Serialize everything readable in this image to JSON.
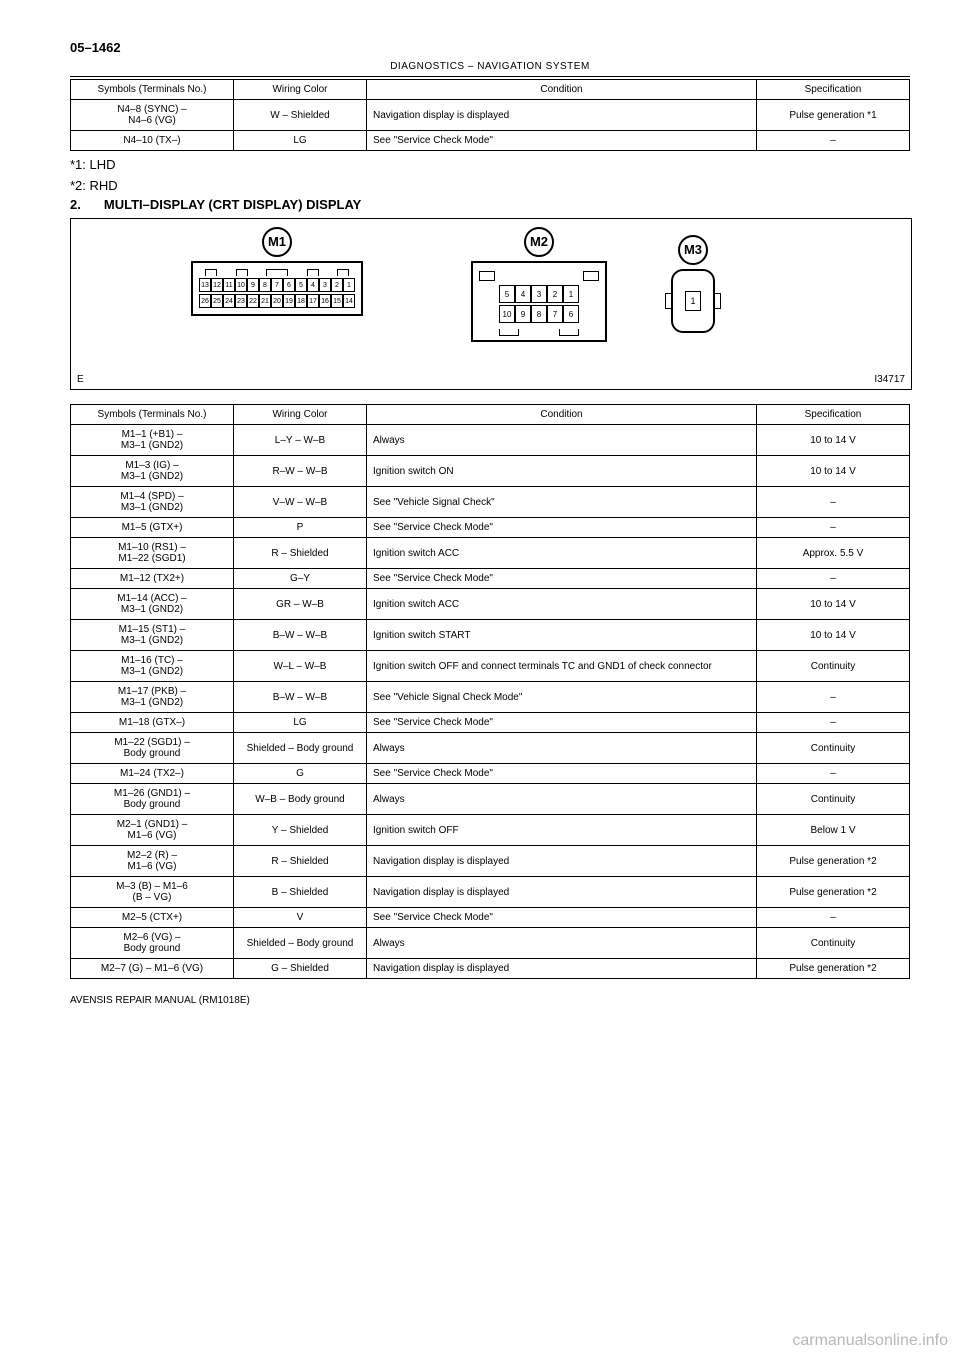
{
  "page_number": "05–1462",
  "header": "DIAGNOSTICS    –    NAVIGATION SYSTEM",
  "table1": {
    "headers": [
      "Symbols (Terminals No.)",
      "Wiring Color",
      "Condition",
      "Specification"
    ],
    "rows": [
      [
        "N4–8 (SYNC) –\nN4–6 (VG)",
        "W – Shielded",
        "Navigation display is displayed",
        "Pulse generation *1"
      ],
      [
        "N4–10 (TX–)",
        "LG",
        "See \"Service Check Mode\"",
        "–"
      ]
    ]
  },
  "notes": {
    "n1": "*1: LHD",
    "n2": "*2: RHD"
  },
  "section": {
    "num": "2.",
    "title": "MULTI–DISPLAY (CRT DISPLAY) DISPLAY"
  },
  "diagram": {
    "labels": {
      "m1": "M1",
      "m2": "M2",
      "m3": "M3"
    },
    "m1_row1": [
      "13",
      "12",
      "11",
      "10",
      "9",
      "8",
      "7",
      "6",
      "5",
      "4",
      "3",
      "2",
      "1"
    ],
    "m1_row2": [
      "26",
      "25",
      "24",
      "23",
      "22",
      "21",
      "20",
      "19",
      "18",
      "17",
      "16",
      "15",
      "14"
    ],
    "m2_row1": [
      "5",
      "4",
      "3",
      "2",
      "1"
    ],
    "m2_row2": [
      "10",
      "9",
      "8",
      "7",
      "6"
    ],
    "m3_pin": "1",
    "letter": "E",
    "code": "I34717"
  },
  "table2": {
    "headers": [
      "Symbols (Terminals No.)",
      "Wiring Color",
      "Condition",
      "Specification"
    ],
    "rows": [
      [
        "M1–1 (+B1) –\nM3–1 (GND2)",
        "L–Y – W–B",
        "Always",
        "10 to 14 V"
      ],
      [
        "M1–3 (IG) –\nM3–1 (GND2)",
        "R–W – W–B",
        "Ignition switch ON",
        "10 to 14 V"
      ],
      [
        "M1–4 (SPD) –\nM3–1 (GND2)",
        "V–W – W–B",
        "See \"Vehicle Signal Check\"",
        "–"
      ],
      [
        "M1–5 (GTX+)",
        "P",
        "See \"Service Check Mode\"",
        "–"
      ],
      [
        "M1–10 (RS1) –\nM1–22 (SGD1)",
        "R – Shielded",
        "Ignition switch ACC",
        "Approx. 5.5 V"
      ],
      [
        "M1–12 (TX2+)",
        "G–Y",
        "See \"Service Check Mode\"",
        "–"
      ],
      [
        "M1–14 (ACC) –\nM3–1 (GND2)",
        "GR – W–B",
        "Ignition switch ACC",
        "10 to 14 V"
      ],
      [
        "M1–15 (ST1) –\nM3–1 (GND2)",
        "B–W – W–B",
        "Ignition switch START",
        "10 to 14 V"
      ],
      [
        "M1–16 (TC) –\nM3–1 (GND2)",
        "W–L – W–B",
        "Ignition switch OFF and connect terminals TC and GND1 of check connector",
        "Continuity"
      ],
      [
        "M1–17 (PKB) –\nM3–1 (GND2)",
        "B–W – W–B",
        "See \"Vehicle Signal Check Mode\"",
        "–"
      ],
      [
        "M1–18 (GTX–)",
        "LG",
        "See \"Service Check Mode\"",
        "–"
      ],
      [
        "M1–22 (SGD1) –\nBody ground",
        "Shielded – Body ground",
        "Always",
        "Continuity"
      ],
      [
        "M1–24 (TX2–)",
        "G",
        "See \"Service Check Mode\"",
        "–"
      ],
      [
        "M1–26 (GND1) –\nBody ground",
        "W–B – Body ground",
        "Always",
        "Continuity"
      ],
      [
        "M2–1 (GND1) –\nM1–6 (VG)",
        "Y – Shielded",
        "Ignition switch OFF",
        "Below 1 V"
      ],
      [
        "M2–2 (R) –\nM1–6 (VG)",
        "R – Shielded",
        "Navigation display is displayed",
        "Pulse generation *2"
      ],
      [
        "M–3 (B) – M1–6\n(B – VG)",
        "B – Shielded",
        "Navigation display is displayed",
        "Pulse generation *2"
      ],
      [
        "M2–5 (CTX+)",
        "V",
        "See \"Service Check Mode\"",
        "–"
      ],
      [
        "M2–6 (VG) –\nBody ground",
        "Shielded – Body ground",
        "Always",
        "Continuity"
      ],
      [
        "M2–7 (G) – M1–6 (VG)",
        "G – Shielded",
        "Navigation display is displayed",
        "Pulse generation *2"
      ]
    ]
  },
  "footer": "AVENSIS REPAIR MANUAL   (RM1018E)",
  "watermark": "carmanualsonline.info"
}
